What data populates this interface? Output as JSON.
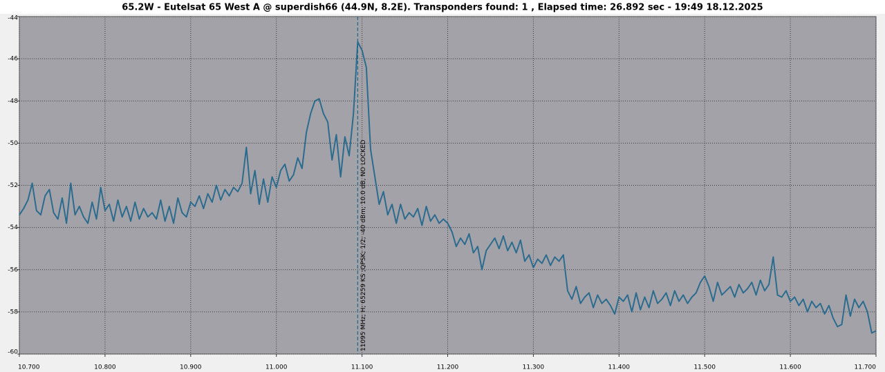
{
  "chart_data": {
    "type": "line",
    "title": "65.2W - Eutelsat 65 West A @ superdish66 (44.9N, 8.2E). Transponders found: 1 , Elapsed time: 26.892 sec - 19:49 18.12.2025",
    "color": "#2b6b8e",
    "grid": true,
    "xlim": [
      10.7,
      11.7
    ],
    "ylim": [
      -60,
      -44
    ],
    "xticks": [
      {
        "value": 10.7,
        "label": "10.700"
      },
      {
        "value": 10.8,
        "label": "10.800"
      },
      {
        "value": 10.9,
        "label": "10.900"
      },
      {
        "value": 11.0,
        "label": "11.000"
      },
      {
        "value": 11.1,
        "label": "11.100"
      },
      {
        "value": 11.2,
        "label": "11.200"
      },
      {
        "value": 11.3,
        "label": "11.300"
      },
      {
        "value": 11.4,
        "label": "11.400"
      },
      {
        "value": 11.5,
        "label": "11.500"
      },
      {
        "value": 11.6,
        "label": "11.600"
      },
      {
        "value": 11.7,
        "label": "11.700"
      }
    ],
    "yticks": [
      -60,
      -58,
      -56,
      -54,
      -52,
      -50,
      -48,
      -46,
      -44
    ],
    "annotation": {
      "text": "11095 MHz; H; 65259 KS ;QPSK; 1/2; -40 dBm; 10.0 dB, NO LOCKED",
      "x": 11.095
    },
    "x": [
      10.7,
      10.705,
      10.71,
      10.715,
      10.72,
      10.725,
      10.73,
      10.735,
      10.74,
      10.745,
      10.75,
      10.755,
      10.76,
      10.765,
      10.77,
      10.775,
      10.78,
      10.785,
      10.79,
      10.795,
      10.8,
      10.805,
      10.81,
      10.815,
      10.82,
      10.825,
      10.83,
      10.835,
      10.84,
      10.845,
      10.85,
      10.855,
      10.86,
      10.865,
      10.87,
      10.875,
      10.88,
      10.885,
      10.89,
      10.895,
      10.9,
      10.905,
      10.91,
      10.915,
      10.92,
      10.925,
      10.93,
      10.935,
      10.94,
      10.945,
      10.95,
      10.955,
      10.96,
      10.965,
      10.97,
      10.975,
      10.98,
      10.985,
      10.99,
      10.995,
      11.0,
      11.005,
      11.01,
      11.015,
      11.02,
      11.025,
      11.03,
      11.035,
      11.04,
      11.045,
      11.05,
      11.055,
      11.06,
      11.065,
      11.07,
      11.075,
      11.08,
      11.085,
      11.09,
      11.095,
      11.1,
      11.105,
      11.11,
      11.115,
      11.12,
      11.125,
      11.13,
      11.135,
      11.14,
      11.145,
      11.15,
      11.155,
      11.16,
      11.165,
      11.17,
      11.175,
      11.18,
      11.185,
      11.19,
      11.195,
      11.2,
      11.205,
      11.21,
      11.215,
      11.22,
      11.225,
      11.23,
      11.235,
      11.24,
      11.245,
      11.25,
      11.255,
      11.26,
      11.265,
      11.27,
      11.275,
      11.28,
      11.285,
      11.29,
      11.295,
      11.3,
      11.305,
      11.31,
      11.315,
      11.32,
      11.325,
      11.33,
      11.335,
      11.34,
      11.345,
      11.35,
      11.355,
      11.36,
      11.365,
      11.37,
      11.375,
      11.38,
      11.385,
      11.39,
      11.395,
      11.4,
      11.405,
      11.41,
      11.415,
      11.42,
      11.425,
      11.43,
      11.435,
      11.44,
      11.445,
      11.45,
      11.455,
      11.46,
      11.465,
      11.47,
      11.475,
      11.48,
      11.485,
      11.49,
      11.495,
      11.5,
      11.505,
      11.51,
      11.515,
      11.52,
      11.525,
      11.53,
      11.535,
      11.54,
      11.545,
      11.55,
      11.555,
      11.56,
      11.565,
      11.57,
      11.575,
      11.58,
      11.585,
      11.59,
      11.595,
      11.6,
      11.605,
      11.61,
      11.615,
      11.62,
      11.625,
      11.63,
      11.635,
      11.64,
      11.645,
      11.65,
      11.655,
      11.66,
      11.665,
      11.67,
      11.675,
      11.68,
      11.685,
      11.69,
      11.695,
      11.7
    ],
    "values": [
      -53.4,
      -53.1,
      -52.7,
      -51.9,
      -53.2,
      -53.4,
      -52.5,
      -52.2,
      -53.3,
      -53.6,
      -52.6,
      -53.8,
      -51.9,
      -53.4,
      -53.0,
      -53.5,
      -53.8,
      -52.8,
      -53.6,
      -52.1,
      -53.2,
      -52.9,
      -53.7,
      -52.7,
      -53.5,
      -53.0,
      -53.7,
      -52.8,
      -53.6,
      -53.1,
      -53.5,
      -53.3,
      -53.6,
      -52.7,
      -53.7,
      -53.0,
      -53.8,
      -52.6,
      -53.3,
      -53.5,
      -52.8,
      -53.0,
      -52.5,
      -53.1,
      -52.4,
      -52.8,
      -52.0,
      -52.7,
      -52.2,
      -52.5,
      -52.1,
      -52.3,
      -51.9,
      -50.2,
      -52.4,
      -51.3,
      -52.9,
      -51.7,
      -52.8,
      -51.6,
      -52.1,
      -51.3,
      -51.0,
      -51.8,
      -51.5,
      -50.7,
      -51.2,
      -49.5,
      -48.6,
      -48.0,
      -47.9,
      -48.6,
      -49.0,
      -50.8,
      -49.6,
      -51.6,
      -49.7,
      -50.6,
      -48.6,
      -45.2,
      -45.6,
      -46.4,
      -50.3,
      -51.6,
      -52.9,
      -52.3,
      -53.4,
      -52.9,
      -53.8,
      -52.9,
      -53.6,
      -53.3,
      -53.5,
      -53.1,
      -53.9,
      -53.0,
      -53.7,
      -53.4,
      -53.8,
      -53.6,
      -53.8,
      -54.2,
      -54.9,
      -54.5,
      -54.8,
      -54.3,
      -55.2,
      -54.9,
      -56.0,
      -55.1,
      -54.8,
      -54.5,
      -55.0,
      -54.4,
      -55.1,
      -54.7,
      -55.2,
      -54.6,
      -55.6,
      -55.3,
      -55.9,
      -55.5,
      -55.7,
      -55.3,
      -55.8,
      -55.4,
      -55.6,
      -55.3,
      -57.0,
      -57.4,
      -56.8,
      -57.6,
      -57.3,
      -57.1,
      -57.8,
      -57.2,
      -57.6,
      -57.4,
      -57.7,
      -58.1,
      -57.3,
      -57.5,
      -57.2,
      -58.0,
      -57.1,
      -57.9,
      -57.3,
      -57.8,
      -57.0,
      -57.6,
      -57.4,
      -57.1,
      -57.7,
      -57.0,
      -57.5,
      -57.2,
      -57.6,
      -57.3,
      -57.1,
      -56.6,
      -56.3,
      -56.8,
      -57.5,
      -56.6,
      -57.2,
      -57.0,
      -56.8,
      -57.3,
      -56.7,
      -57.1,
      -56.9,
      -56.6,
      -57.2,
      -56.5,
      -57.0,
      -56.7,
      -55.4,
      -57.2,
      -57.3,
      -57.0,
      -57.5,
      -57.3,
      -57.7,
      -57.4,
      -58.0,
      -57.5,
      -57.8,
      -57.6,
      -58.1,
      -57.7,
      -58.3,
      -58.7,
      -58.6,
      -57.2,
      -58.2,
      -57.4,
      -57.8,
      -57.5,
      -58.0,
      -59.0,
      -58.9
    ]
  }
}
